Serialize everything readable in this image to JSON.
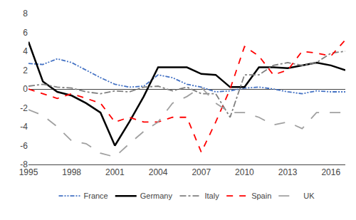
{
  "chart_data": {
    "type": "line",
    "x": [
      1995,
      1996,
      1997,
      1998,
      1999,
      2000,
      2001,
      2002,
      2003,
      2004,
      2005,
      2006,
      2007,
      2008,
      2009,
      2010,
      2011,
      2012,
      2013,
      2014,
      2015,
      2016,
      2017
    ],
    "series": [
      {
        "name": "France",
        "color": "#4472C4",
        "line_style": "dashdotdot",
        "values": [
          2.7,
          2.6,
          3.2,
          2.8,
          2.0,
          1.2,
          0.5,
          0.2,
          0.3,
          1.5,
          1.2,
          0.5,
          0.2,
          -0.3,
          -0.2,
          0.1,
          0.2,
          0.0,
          -0.3,
          -0.5,
          -0.2,
          -0.3,
          -0.3
        ]
      },
      {
        "name": "Germany",
        "color": "#000000",
        "line_style": "solid",
        "values": [
          5.0,
          0.8,
          -0.3,
          -0.7,
          -1.5,
          -2.5,
          -6.0,
          -3.5,
          -0.8,
          2.3,
          2.3,
          2.3,
          1.6,
          1.5,
          0.2,
          0.2,
          2.3,
          2.3,
          2.2,
          2.5,
          2.8,
          2.5,
          2.0
        ]
      },
      {
        "name": "Italy",
        "color": "#808080",
        "line_style": "dashdot",
        "values": [
          0.3,
          0.5,
          0.2,
          0.1,
          -0.3,
          -0.5,
          -0.2,
          -0.3,
          0.2,
          0.3,
          -0.2,
          0.2,
          -0.5,
          -0.5,
          -3.0,
          1.5,
          1.5,
          2.5,
          2.8,
          2.5,
          2.8,
          3.8,
          4.0
        ]
      },
      {
        "name": "Spain",
        "color": "#FF0000",
        "line_style": "dash",
        "values": [
          0.0,
          -0.5,
          -1.0,
          -0.5,
          -1.0,
          -1.5,
          -3.5,
          -3.0,
          -3.5,
          -3.5,
          -3.0,
          -3.0,
          -6.7,
          -3.5,
          0.0,
          4.5,
          3.5,
          1.5,
          2.0,
          4.0,
          3.8,
          3.5,
          5.2
        ]
      },
      {
        "name": "UK",
        "color": "#A0A0A0",
        "line_style": "longdash",
        "values": [
          -2.2,
          -2.8,
          -4.0,
          -5.5,
          -5.8,
          -6.8,
          -7.2,
          -5.8,
          -4.5,
          -3.5,
          -1.5,
          -0.8,
          0.2,
          -1.5,
          -2.5,
          -2.5,
          -3.0,
          -3.8,
          -3.5,
          -4.2,
          -2.5,
          -2.5,
          -2.5
        ]
      }
    ],
    "xlim": [
      1995,
      2017
    ],
    "xticks": [
      1995,
      1998,
      2001,
      2004,
      2007,
      2010,
      2013,
      2016
    ],
    "ylim": [
      -8,
      8
    ],
    "yticks": [
      -8,
      -6,
      -4,
      -2,
      0,
      2,
      4,
      6,
      8
    ],
    "grid": false,
    "legend": "bottom"
  }
}
